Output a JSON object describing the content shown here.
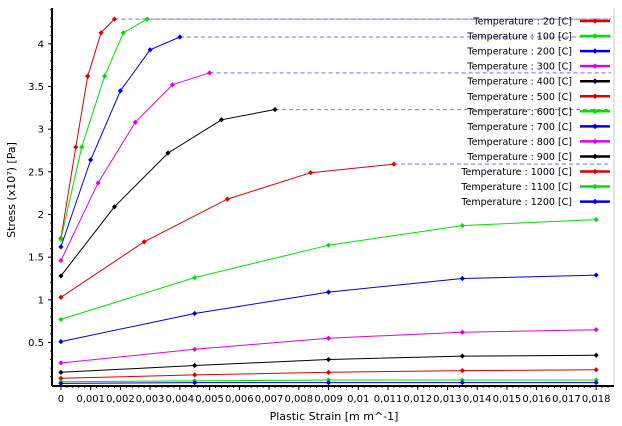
{
  "chart_data": {
    "type": "line",
    "xlabel": "Plastic Strain  [m m^-1]",
    "ylabel": "Stress  (x10⁷)  [Pa]",
    "xlim": [
      -0.0003,
      0.0186
    ],
    "ylim": [
      -0.01,
      4.42
    ],
    "xticks": [
      0,
      0.001,
      0.002,
      0.003,
      0.004,
      0.005,
      0.006,
      0.007,
      0.008,
      0.009,
      0.01,
      0.011,
      0.012,
      0.013,
      0.014,
      0.015,
      0.016,
      0.017,
      0.018
    ],
    "xtick_labels": [
      "0",
      "0,001",
      "0,002",
      "0,003",
      "0,004",
      "0,005",
      "0,006",
      "0,007",
      "0,008",
      "0,009",
      "0,01",
      "0,011",
      "0,012",
      "0,013",
      "0,014",
      "0,015",
      "0,016",
      "0,017",
      "0,018"
    ],
    "yticks": [
      0.5,
      1,
      1.5,
      2,
      2.5,
      3,
      3.5,
      4
    ],
    "ytick_labels": [
      "0.5",
      "1",
      "1.5",
      "2",
      "2.5",
      "3",
      "3.5",
      "4"
    ],
    "grid": false,
    "legend_position": "top-right",
    "series": [
      {
        "name": "Temperature : 20 [C]",
        "color": "#e00000",
        "extend_to": 0.0185,
        "x": [
          0,
          0.0005,
          0.0009,
          0.00135,
          0.0018
        ],
        "y": [
          1.72,
          2.79,
          3.62,
          4.13,
          4.29
        ]
      },
      {
        "name": "Temperature : 100 [C]",
        "color": "#00e000",
        "extend_to": 0.0185,
        "x": [
          0,
          0.0007,
          0.00147,
          0.0021,
          0.0029
        ],
        "y": [
          1.71,
          2.79,
          3.62,
          4.13,
          4.29
        ]
      },
      {
        "name": "Temperature : 200 [C]",
        "color": "#0000e0",
        "extend_to": 0.0185,
        "x": [
          0,
          0.001,
          0.002,
          0.003,
          0.004
        ],
        "y": [
          1.62,
          2.64,
          3.45,
          3.93,
          4.08
        ]
      },
      {
        "name": "Temperature : 300 [C]",
        "color": "#e000e0",
        "extend_to": 0.0185,
        "x": [
          0,
          0.00125,
          0.0025,
          0.00375,
          0.005
        ],
        "y": [
          1.46,
          2.37,
          3.08,
          3.52,
          3.66
        ]
      },
      {
        "name": "Temperature : 400 [C]",
        "color": "#000000",
        "extend_to": 0.0185,
        "x": [
          0,
          0.0018,
          0.0036,
          0.0054,
          0.0072
        ],
        "y": [
          1.28,
          2.09,
          2.72,
          3.11,
          3.23
        ]
      },
      {
        "name": "Temperature : 500 [C]",
        "color": "#e00000",
        "extend_to": 0.0185,
        "x": [
          0,
          0.0028,
          0.0056,
          0.0084,
          0.0112
        ],
        "y": [
          1.03,
          1.68,
          2.18,
          2.49,
          2.59
        ]
      },
      {
        "name": "Temperature : 600 [C]",
        "color": "#00e000",
        "x": [
          0,
          0.0045,
          0.009,
          0.0135,
          0.018
        ],
        "y": [
          0.77,
          1.26,
          1.64,
          1.87,
          1.94
        ]
      },
      {
        "name": "Temperature : 700 [C]",
        "color": "#0000e0",
        "x": [
          0,
          0.0045,
          0.009,
          0.0135,
          0.018
        ],
        "y": [
          0.51,
          0.84,
          1.09,
          1.25,
          1.29
        ]
      },
      {
        "name": "Temperature : 800 [C]",
        "color": "#e000e0",
        "x": [
          0,
          0.0045,
          0.009,
          0.0135,
          0.018
        ],
        "y": [
          0.26,
          0.42,
          0.55,
          0.62,
          0.65
        ]
      },
      {
        "name": "Temperature : 900 [C]",
        "color": "#000000",
        "x": [
          0,
          0.0045,
          0.009,
          0.0135,
          0.018
        ],
        "y": [
          0.15,
          0.23,
          0.3,
          0.34,
          0.35
        ]
      },
      {
        "name": "Temperature : 1000 [C]",
        "color": "#e00000",
        "x": [
          0,
          0.0045,
          0.009,
          0.0135,
          0.018
        ],
        "y": [
          0.08,
          0.12,
          0.15,
          0.17,
          0.18
        ]
      },
      {
        "name": "Temperature : 1100 [C]",
        "color": "#00e000",
        "x": [
          0,
          0.0045,
          0.009,
          0.0135,
          0.018
        ],
        "y": [
          0.04,
          0.05,
          0.06,
          0.06,
          0.06
        ]
      },
      {
        "name": "Temperature : 1200 [C]",
        "color": "#0000e0",
        "x": [
          0,
          0.0045,
          0.009,
          0.0135,
          0.018
        ],
        "y": [
          0.02,
          0.03,
          0.03,
          0.03,
          0.03
        ]
      }
    ]
  }
}
